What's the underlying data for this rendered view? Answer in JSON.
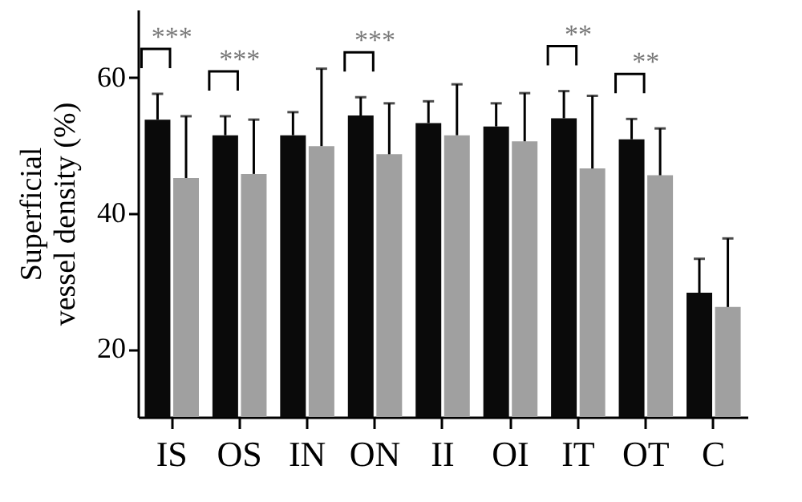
{
  "chart_data": {
    "type": "bar",
    "ylabel": "Superficial vessel density (%)",
    "categories": [
      "IS",
      "OS",
      "IN",
      "ON",
      "II",
      "OI",
      "IT",
      "OT",
      "C"
    ],
    "series": [
      {
        "color": "#0a0a0a",
        "values": [
          53.8,
          51.5,
          51.5,
          54.4,
          53.3,
          52.8,
          54.0,
          50.9,
          28.3
        ],
        "errors": [
          [
            53.8,
            57.6
          ],
          [
            51.5,
            54.3
          ],
          [
            51.5,
            54.9
          ],
          [
            54.4,
            57.1
          ],
          [
            53.3,
            56.5
          ],
          [
            52.8,
            56.2
          ],
          [
            54.0,
            58.0
          ],
          [
            50.9,
            53.9
          ],
          [
            28.3,
            33.3
          ]
        ]
      },
      {
        "color": "#a0a0a0",
        "values": [
          45.2,
          45.8,
          49.9,
          48.7,
          51.5,
          50.6,
          46.6,
          45.6,
          26.2
        ],
        "errors": [
          [
            45.2,
            54.3
          ],
          [
            45.8,
            53.8
          ],
          [
            49.9,
            61.3
          ],
          [
            48.7,
            56.2
          ],
          [
            51.5,
            59.0
          ],
          [
            50.6,
            57.7
          ],
          [
            46.6,
            57.3
          ],
          [
            45.6,
            52.5
          ],
          [
            26.2,
            36.3
          ]
        ]
      }
    ],
    "ylim": [
      10,
      70
    ],
    "yticks": [
      20,
      40,
      60
    ],
    "grid": false,
    "annotations": [
      "***",
      "***",
      "***",
      "**",
      "**"
    ]
  }
}
